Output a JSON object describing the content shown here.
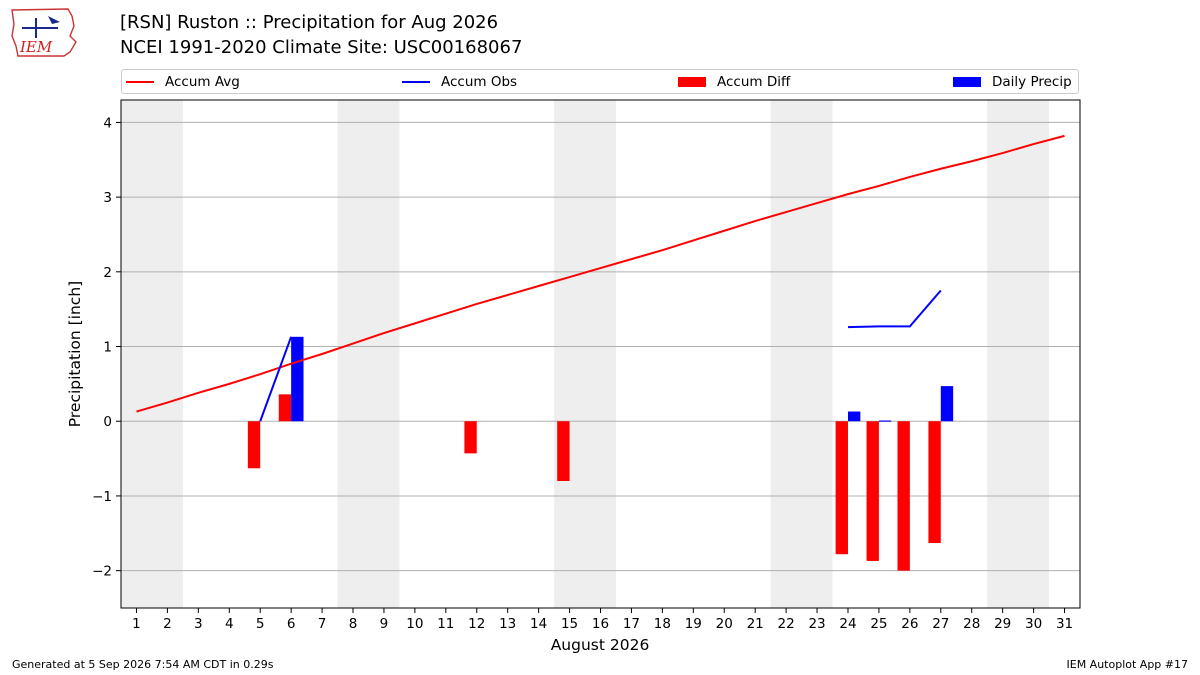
{
  "header": {
    "title_line1": "[RSN] Ruston :: Precipitation for Aug 2026",
    "title_line2": "NCEI 1991-2020 Climate Site: USC00168067",
    "logo_text": "IEM"
  },
  "footer": {
    "generated": "Generated at 5 Sep 2026 7:54 AM CDT in 0.29s",
    "app": "IEM Autoplot App #17"
  },
  "colors": {
    "accum_avg": "#ff0000",
    "accum_obs": "#0000ff",
    "accum_diff": "#ff0000",
    "daily_precip": "#0000ff",
    "weekend_band": "#eeeeee",
    "grid": "#b0b0b0"
  },
  "chart_data": {
    "type": "bar",
    "xlabel": "August 2026",
    "ylabel": "Precipitation [inch]",
    "xlim": [
      0.5,
      31.5
    ],
    "ylim": [
      -2.5,
      4.3
    ],
    "yticks": [
      -2,
      -1,
      0,
      1,
      2,
      3,
      4
    ],
    "ytick_labels": [
      "−2",
      "−1",
      "0",
      "1",
      "2",
      "3",
      "4"
    ],
    "xticks": [
      1,
      2,
      3,
      4,
      5,
      6,
      7,
      8,
      9,
      10,
      11,
      12,
      13,
      14,
      15,
      16,
      17,
      18,
      19,
      20,
      21,
      22,
      23,
      24,
      25,
      26,
      27,
      28,
      29,
      30,
      31
    ],
    "grid": "horizontal",
    "legend_placement": "top",
    "legend": [
      "Accum Avg",
      "Accum Obs",
      "Accum Diff",
      "Daily Precip"
    ],
    "weekend_bands": [
      [
        0.5,
        2.5
      ],
      [
        7.5,
        9.5
      ],
      [
        14.5,
        16.5
      ],
      [
        21.5,
        23.5
      ],
      [
        28.5,
        30.5
      ]
    ],
    "series": [
      {
        "name": "Accum Avg",
        "kind": "line",
        "x": [
          1,
          2,
          3,
          4,
          5,
          6,
          7,
          8,
          9,
          10,
          11,
          12,
          13,
          14,
          15,
          16,
          17,
          18,
          19,
          20,
          21,
          22,
          23,
          24,
          25,
          26,
          27,
          28,
          29,
          30,
          31
        ],
        "values": [
          0.13,
          0.25,
          0.38,
          0.5,
          0.63,
          0.77,
          0.9,
          1.04,
          1.18,
          1.31,
          1.44,
          1.57,
          1.69,
          1.81,
          1.93,
          2.05,
          2.17,
          2.29,
          2.42,
          2.55,
          2.68,
          2.8,
          2.92,
          3.04,
          3.15,
          3.27,
          3.38,
          3.48,
          3.59,
          3.71,
          3.82
        ]
      },
      {
        "name": "Accum Obs",
        "kind": "line",
        "segments": [
          {
            "x": [
              5,
              6
            ],
            "values": [
              0.0,
              1.13
            ]
          },
          {
            "x": [
              24,
              25,
              26,
              27
            ],
            "values": [
              1.26,
              1.27,
              1.27,
              1.75
            ]
          }
        ]
      },
      {
        "name": "Accum Diff",
        "kind": "bar",
        "x": [
          5,
          6,
          12,
          15,
          24,
          25,
          26,
          27
        ],
        "values": [
          -0.63,
          0.36,
          -0.43,
          -0.8,
          -1.78,
          -1.87,
          -2.0,
          -1.63
        ]
      },
      {
        "name": "Daily Precip",
        "kind": "bar",
        "x": [
          6,
          24,
          25,
          27
        ],
        "values": [
          1.13,
          0.13,
          0.01,
          0.47
        ]
      }
    ]
  }
}
